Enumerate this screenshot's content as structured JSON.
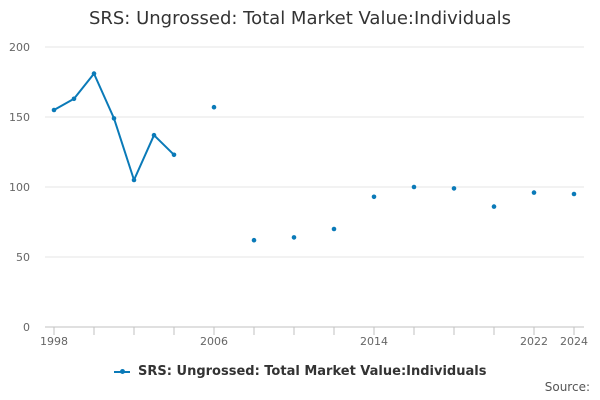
{
  "chart_data": {
    "type": "line",
    "title": "SRS: Ungrossed: Total Market Value:Individuals",
    "xlabel": "",
    "ylabel": "",
    "xlim": [
      1998,
      2024
    ],
    "ylim": [
      0,
      200
    ],
    "x_ticks": [
      1998,
      2006,
      2014,
      2022,
      2024
    ],
    "y_ticks": [
      0,
      50,
      100,
      150,
      200
    ],
    "grid": true,
    "legend_position": "bottom-center",
    "series": [
      {
        "name": "SRS: Ungrossed: Total Market Value:Individuals",
        "color": "#0a7ab8",
        "points": [
          {
            "x": 1998,
            "y": 155
          },
          {
            "x": 1999,
            "y": 163
          },
          {
            "x": 2000,
            "y": 181
          },
          {
            "x": 2001,
            "y": 149
          },
          {
            "x": 2002,
            "y": 105
          },
          {
            "x": 2003,
            "y": 137
          },
          {
            "x": 2004,
            "y": 123
          },
          {
            "x": 2006,
            "y": 157
          },
          {
            "x": 2008,
            "y": 62
          },
          {
            "x": 2010,
            "y": 64
          },
          {
            "x": 2012,
            "y": 70
          },
          {
            "x": 2014,
            "y": 93
          },
          {
            "x": 2016,
            "y": 100
          },
          {
            "x": 2018,
            "y": 99
          },
          {
            "x": 2020,
            "y": 86
          },
          {
            "x": 2022,
            "y": 96
          },
          {
            "x": 2024,
            "y": 95
          }
        ]
      }
    ]
  },
  "legend": {
    "label": "SRS: Ungrossed: Total Market Value:Individuals"
  },
  "footer": {
    "source_label": "Source:"
  }
}
